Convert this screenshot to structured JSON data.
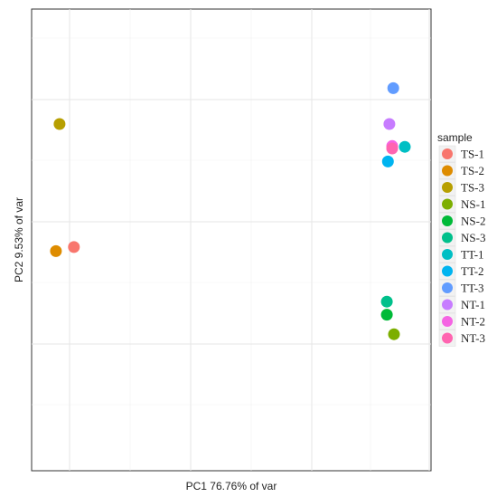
{
  "chart_data": {
    "type": "scatter",
    "xlabel": "PC1 76.76% of var",
    "ylabel": "PC2 9.53% of var",
    "grid": true,
    "legend": {
      "title": "sample",
      "placement": "right"
    },
    "xlim": [
      0,
      100
    ],
    "ylim": [
      -50,
      100
    ],
    "series": [
      {
        "name": "TS-1",
        "color": "#F8766D",
        "x": 9.5,
        "y": 9.5
      },
      {
        "name": "TS-2",
        "color": "#DE8C00",
        "x": 4.5,
        "y": 7.0
      },
      {
        "name": "TS-3",
        "color": "#B79F00",
        "x": 5.5,
        "y": 85.0
      },
      {
        "name": "NS-1",
        "color": "#7CAE00",
        "x": 98.5,
        "y": -44.0
      },
      {
        "name": "NS-2",
        "color": "#00BA38",
        "x": 96.5,
        "y": -32.0
      },
      {
        "name": "NS-3",
        "color": "#00C08B",
        "x": 96.5,
        "y": -24.0
      },
      {
        "name": "TT-1",
        "color": "#00BFC4",
        "x": 101.5,
        "y": 71.0
      },
      {
        "name": "TT-2",
        "color": "#00B4F0",
        "x": 96.8,
        "y": 62.0
      },
      {
        "name": "TT-3",
        "color": "#619CFF",
        "x": 98.3,
        "y": 107.0
      },
      {
        "name": "NT-1",
        "color": "#C77CFF",
        "x": 97.2,
        "y": 85.0
      },
      {
        "name": "NT-2",
        "color": "#F564E3",
        "x": 98.0,
        "y": 71.5
      },
      {
        "name": "NT-3",
        "color": "#FF64B0",
        "x": 98.0,
        "y": 70.0
      }
    ]
  }
}
